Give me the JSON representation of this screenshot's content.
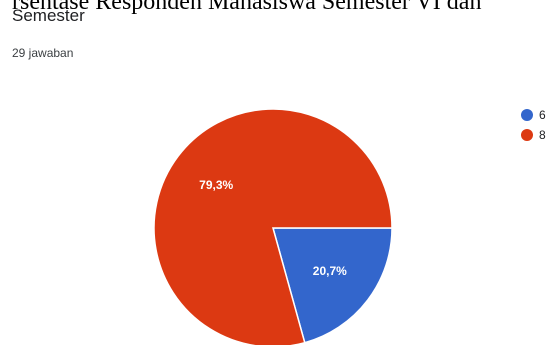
{
  "header": {
    "overlay_title": "rsentase Responden Mahasiswa Semester VI dan",
    "question_title": "Semester",
    "response_count": "29 jawaban"
  },
  "chart_data": {
    "type": "pie",
    "categories": [
      "6",
      "8"
    ],
    "values": [
      20.7,
      79.3
    ],
    "labels": [
      "20,7%",
      "79,3%"
    ],
    "colors": [
      "#3366cc",
      "#dc3912"
    ],
    "legend_position": "right",
    "start_angle": "3 o'clock, clockwise"
  }
}
